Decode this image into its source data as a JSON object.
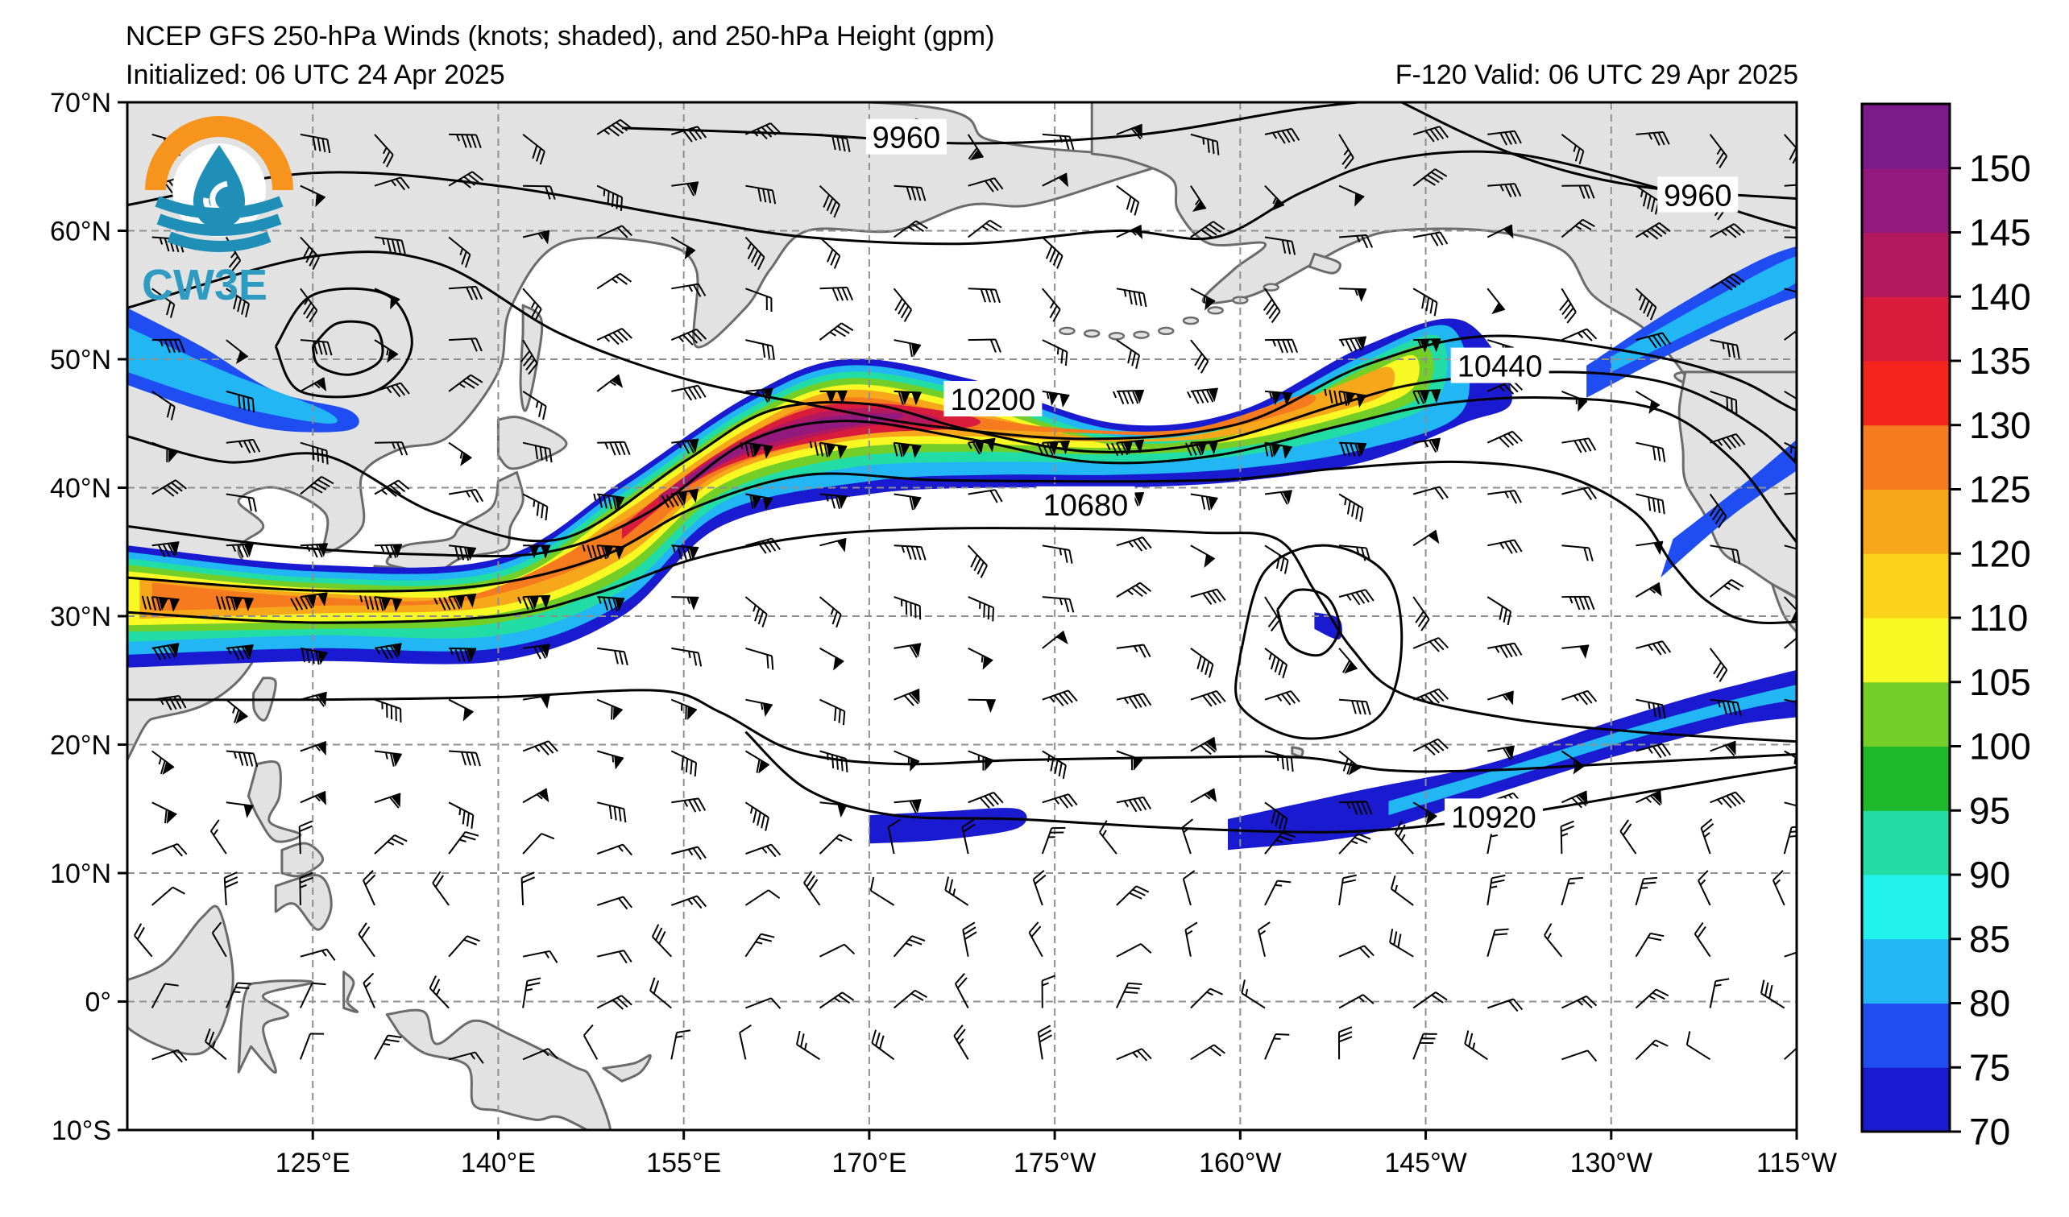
{
  "header": {
    "title_line1": "NCEP GFS 250-hPa Winds (knots; shaded), and 250-hPa Height (gpm)",
    "title_line2_left": "Initialized: 06 UTC 24 Apr 2025",
    "title_line2_right": "F-120  Valid: 06 UTC 29 Apr 2025"
  },
  "logo": {
    "text": "CW3E",
    "icon": "cw3e-water-drop-logo-icon",
    "ring_color": "#f7941d",
    "water_color": "#1f8fb8"
  },
  "map": {
    "lon_range": [
      110,
      245
    ],
    "lat_range": [
      -10,
      70
    ],
    "lat_ticks": [
      {
        "value": 70,
        "label": "70°N"
      },
      {
        "value": 60,
        "label": "60°N"
      },
      {
        "value": 50,
        "label": "50°N"
      },
      {
        "value": 40,
        "label": "40°N"
      },
      {
        "value": 30,
        "label": "30°N"
      },
      {
        "value": 20,
        "label": "20°N"
      },
      {
        "value": 10,
        "label": "10°N"
      },
      {
        "value": 0,
        "label": "0°"
      },
      {
        "value": -10,
        "label": "10°S"
      }
    ],
    "lon_ticks": [
      {
        "value": 125,
        "label": "125°E"
      },
      {
        "value": 140,
        "label": "140°E"
      },
      {
        "value": 155,
        "label": "155°E"
      },
      {
        "value": 170,
        "label": "170°E"
      },
      {
        "value": 185,
        "label": "175°W"
      },
      {
        "value": 200,
        "label": "160°W"
      },
      {
        "value": 215,
        "label": "145°W"
      },
      {
        "value": 230,
        "label": "130°W"
      },
      {
        "value": 245,
        "label": "115°W"
      }
    ],
    "gridlines": true,
    "land_color": "#e2e2e2",
    "coast_color": "#6b6b6b",
    "contour_labels": [
      {
        "text": "9960",
        "lon": 173,
        "lat": 67.2
      },
      {
        "text": "9960",
        "lon": 237,
        "lat": 62.7
      },
      {
        "text": "10200",
        "lon": 180,
        "lat": 46.8
      },
      {
        "text": "10440",
        "lon": 221,
        "lat": 49.4
      },
      {
        "text": "10680",
        "lon": 187.5,
        "lat": 38.6
      },
      {
        "text": "10920",
        "lon": 220.5,
        "lat": 14.3
      }
    ]
  },
  "colorbar": {
    "ticks": [
      "70",
      "75",
      "80",
      "85",
      "90",
      "95",
      "100",
      "105",
      "110",
      "120",
      "125",
      "130",
      "135",
      "140",
      "145",
      "150"
    ],
    "colors": [
      "#1a1ad0",
      "#1f4df2",
      "#22b6f5",
      "#22f2ec",
      "#22dca6",
      "#1fb82a",
      "#73cf27",
      "#f8f824",
      "#fad219",
      "#f7a81a",
      "#f67a1e",
      "#f5251e",
      "#d91c3c",
      "#b4185f",
      "#92197d",
      "#7c1a8a"
    ]
  }
}
